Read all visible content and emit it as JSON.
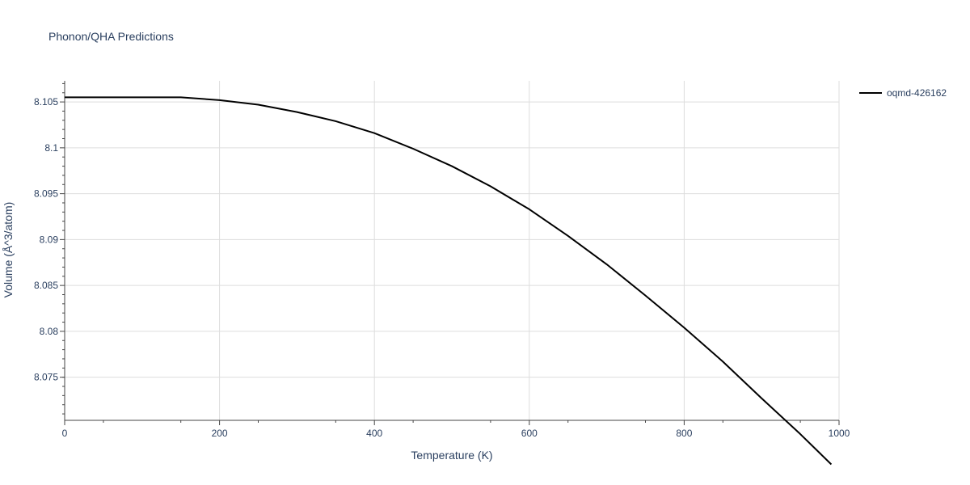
{
  "chart_data": {
    "type": "line",
    "title": "Phonon/QHA Predictions",
    "xlabel": "Temperature (K)",
    "ylabel": "Volume (Å^3/atom)",
    "xlim": [
      0,
      1000
    ],
    "ylim": [
      8.0703,
      8.1073
    ],
    "x_ticks": [
      0,
      200,
      400,
      600,
      800,
      1000
    ],
    "x_tick_labels": [
      "0",
      "200",
      "400",
      "600",
      "800",
      "1000"
    ],
    "y_ticks": [
      8.075,
      8.08,
      8.085,
      8.09,
      8.095,
      8.1,
      8.105
    ],
    "y_tick_labels": [
      "8.075",
      "8.08",
      "8.085",
      "8.09",
      "8.095",
      "8.1",
      "8.105"
    ],
    "grid": true,
    "legend_position": "top-right",
    "series": [
      {
        "name": "oqmd-426162",
        "color": "#000000",
        "x": [
          0,
          50,
          100,
          150,
          200,
          250,
          300,
          350,
          400,
          450,
          500,
          550,
          600,
          650,
          700,
          750,
          800,
          850,
          900,
          950,
          990
        ],
        "y": [
          8.1055,
          8.1055,
          8.1055,
          8.1055,
          8.1052,
          8.1047,
          8.1039,
          8.1029,
          8.1016,
          8.0999,
          8.098,
          8.0958,
          8.0933,
          8.0904,
          8.0873,
          8.0839,
          8.0804,
          8.0767,
          8.0727,
          8.0688,
          8.0655
        ]
      }
    ]
  }
}
